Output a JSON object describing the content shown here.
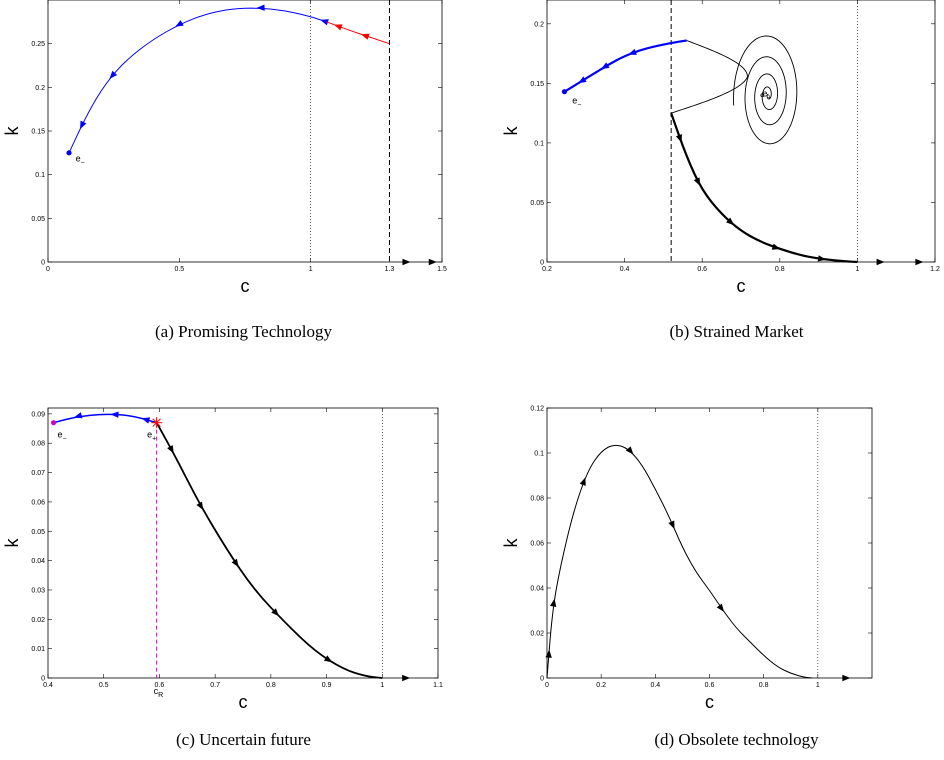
{
  "colors": {
    "blue": "#0000ff",
    "red": "#ff0000",
    "black": "#000000",
    "magenta": "#cc00cc",
    "marker": "#ff0000"
  },
  "chart_data": [
    {
      "type": "line",
      "caption": "(a) Promising Technology",
      "xlabel": "c",
      "ylabel": "k",
      "xlim": [
        0,
        1.5
      ],
      "ylim": [
        0,
        0.3
      ],
      "xticks": [
        0,
        0.5,
        1,
        1.3,
        1.5
      ],
      "xtick_labels": [
        "0",
        "0.5",
        "1",
        "1.3",
        "1.5"
      ],
      "yticks": [
        0,
        0.05,
        0.1,
        0.15,
        0.2,
        0.25
      ],
      "ytick_labels": [
        "0",
        "0.05",
        "0.1",
        "0.15",
        "0.2",
        "0.25"
      ],
      "vlines": [
        {
          "x": 1,
          "style": "dotted"
        },
        {
          "x": 1.3,
          "style": "dashed"
        }
      ],
      "series": [
        {
          "color": "blue",
          "width": 1,
          "x": [
            0.08,
            0.15,
            0.22,
            0.3,
            0.4,
            0.5,
            0.6,
            0.7,
            0.8,
            0.9,
            1.0,
            1.06
          ],
          "y": [
            0.125,
            0.17,
            0.205,
            0.232,
            0.255,
            0.272,
            0.284,
            0.29,
            0.291,
            0.288,
            0.281,
            0.275
          ],
          "arrows": [
            0.08,
            0.26,
            0.52,
            0.78,
            0.98
          ]
        },
        {
          "color": "red",
          "width": 1,
          "x": [
            1.06,
            1.15,
            1.22,
            1.3
          ],
          "y": [
            0.275,
            0.265,
            0.258,
            0.25
          ],
          "arrows": [
            0.12,
            0.55
          ]
        }
      ],
      "points": [
        {
          "x": 0.08,
          "y": 0.125,
          "color": "blue"
        }
      ],
      "labels": [
        {
          "text": "e",
          "sub": "−",
          "x": 0.105,
          "y": 0.115
        }
      ]
    },
    {
      "type": "line",
      "caption": "(b) Strained Market",
      "xlabel": "c",
      "ylabel": "k",
      "xlim": [
        0.2,
        1.2
      ],
      "ylim": [
        0,
        0.22
      ],
      "xticks": [
        0.2,
        0.4,
        0.6,
        0.8,
        1,
        1.2
      ],
      "xtick_labels": [
        "0.2",
        "0.4",
        "0.6",
        "0.8",
        "1",
        "1.2"
      ],
      "yticks": [
        0,
        0.05,
        0.1,
        0.15,
        0.2
      ],
      "ytick_labels": [
        "0",
        "0.05",
        "0.1",
        "0.15",
        "0.2"
      ],
      "vlines": [
        {
          "x": 1,
          "style": "dotted"
        },
        {
          "x": 0.52,
          "style": "dashed"
        }
      ],
      "spiral": {
        "cx": 0.77,
        "cy": 0.14,
        "rx": 0.09,
        "ry": 0.055,
        "turns": 4.5
      },
      "series": [
        {
          "color": "blue",
          "width": 2.2,
          "x": [
            0.245,
            0.28,
            0.32,
            0.36,
            0.4,
            0.45,
            0.52,
            0.56
          ],
          "y": [
            0.143,
            0.15,
            0.158,
            0.166,
            0.173,
            0.179,
            0.184,
            0.186
          ],
          "arrows": [
            0.12,
            0.32,
            0.55
          ]
        },
        {
          "color": "black",
          "width": 2.2,
          "x": [
            0.52,
            0.56,
            0.6,
            0.65,
            0.7,
            0.75,
            0.8,
            0.86,
            0.92,
            0.97,
            1.0
          ],
          "y": [
            0.125,
            0.088,
            0.06,
            0.04,
            0.026,
            0.017,
            0.011,
            0.005,
            0.002,
            0.0005,
            0
          ],
          "arrows": [
            0.12,
            0.3,
            0.5,
            0.7,
            0.88
          ]
        }
      ],
      "points": [
        {
          "x": 0.245,
          "y": 0.143,
          "color": "blue"
        }
      ],
      "labels": [
        {
          "text": "e",
          "sub": "−",
          "x": 0.265,
          "y": 0.133
        },
        {
          "text": "e",
          "sub": "+",
          "x": 0.755,
          "y": 0.139
        }
      ]
    },
    {
      "type": "line",
      "caption": "(c) Uncertain future",
      "xlabel": "c",
      "ylabel": "k",
      "xlim": [
        0.4,
        1.1
      ],
      "ylim": [
        0,
        0.092
      ],
      "xticks": [
        0.4,
        0.5,
        0.6,
        0.7,
        0.8,
        0.9,
        1,
        1.1
      ],
      "xtick_labels": [
        "0.4",
        "0.5",
        "0.6",
        "0.7",
        "0.8",
        "0.9",
        "1",
        "1.1"
      ],
      "yticks": [
        0,
        0.01,
        0.02,
        0.03,
        0.04,
        0.05,
        0.06,
        0.07,
        0.08,
        0.09
      ],
      "ytick_labels": [
        "0",
        "0.01",
        "0.02",
        "0.03",
        "0.04",
        "0.05",
        "0.06",
        "0.07",
        "0.08",
        "0.09"
      ],
      "vlines": [
        {
          "x": 1,
          "style": "dotted"
        }
      ],
      "cR_line": {
        "x": 0.595,
        "label": "c",
        "sub": "R",
        "color": "magenta"
      },
      "series": [
        {
          "color": "blue",
          "width": 1.5,
          "x": [
            0.41,
            0.45,
            0.5,
            0.55,
            0.595
          ],
          "y": [
            0.087,
            0.089,
            0.09,
            0.0895,
            0.087
          ],
          "arrows": [
            0.2,
            0.55,
            0.85
          ]
        },
        {
          "color": "black",
          "width": 1.8,
          "x": [
            0.595,
            0.63,
            0.67,
            0.72,
            0.77,
            0.83,
            0.88,
            0.93,
            0.97,
            1.0
          ],
          "y": [
            0.087,
            0.075,
            0.06,
            0.044,
            0.03,
            0.018,
            0.009,
            0.003,
            0.0006,
            0
          ],
          "arrows": [
            0.1,
            0.28,
            0.47,
            0.65,
            0.85
          ]
        }
      ],
      "points": [
        {
          "x": 0.41,
          "y": 0.087,
          "color": "magenta"
        }
      ],
      "star": {
        "x": 0.595,
        "y": 0.087,
        "color": "marker"
      },
      "labels": [
        {
          "text": "e",
          "sub": "−",
          "x": 0.417,
          "y": 0.082
        },
        {
          "text": "e",
          "sub": "+",
          "x": 0.578,
          "y": 0.082
        }
      ]
    },
    {
      "type": "line",
      "caption": "(d) Obsolete technology",
      "xlabel": "c",
      "ylabel": "k",
      "xlim": [
        0,
        1.2
      ],
      "ylim": [
        0,
        0.12
      ],
      "xticks": [
        0,
        0.2,
        0.4,
        0.6,
        0.8,
        1
      ],
      "xtick_labels": [
        "0",
        "0.2",
        "0.4",
        "0.6",
        "0.8",
        "1"
      ],
      "yticks": [
        0,
        0.02,
        0.04,
        0.06,
        0.08,
        0.1,
        0.12
      ],
      "ytick_labels": [
        "0",
        "0.02",
        "0.04",
        "0.06",
        "0.08",
        "0.1",
        "0.12"
      ],
      "vlines": [
        {
          "x": 1,
          "style": "dotted"
        }
      ],
      "series": [
        {
          "color": "black",
          "width": 1,
          "x": [
            0,
            0.02,
            0.05,
            0.1,
            0.15,
            0.2,
            0.25,
            0.3,
            0.35,
            0.4,
            0.45,
            0.5,
            0.55,
            0.6,
            0.65,
            0.7,
            0.75,
            0.8,
            0.85,
            0.9,
            0.95,
            0.98
          ],
          "y": [
            0,
            0.03,
            0.05,
            0.075,
            0.092,
            0.101,
            0.104,
            0.102,
            0.095,
            0.084,
            0.072,
            0.058,
            0.047,
            0.039,
            0.03,
            0.022,
            0.016,
            0.01,
            0.005,
            0.002,
            0.0003,
            0
          ],
          "arrows": [
            0.05,
            0.14,
            0.36,
            0.48,
            0.63,
            0.8
          ]
        }
      ],
      "points": []
    }
  ]
}
